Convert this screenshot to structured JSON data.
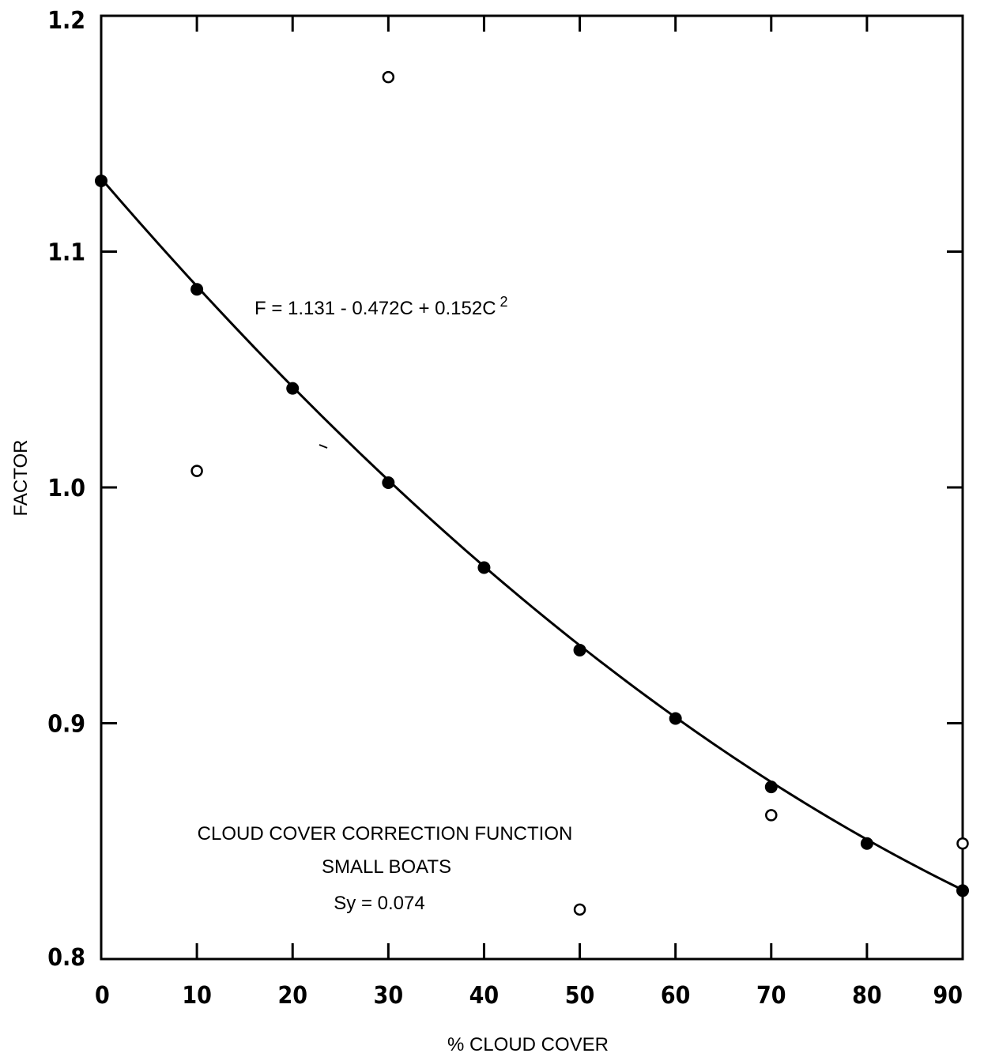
{
  "chart_data": {
    "type": "scatter",
    "title": "",
    "xlabel": "% CLOUD COVER",
    "ylabel": "FACTOR",
    "xlim": [
      0,
      90
    ],
    "ylim": [
      0.8,
      1.2
    ],
    "x_ticks": [
      0,
      10,
      20,
      30,
      40,
      50,
      60,
      70,
      80,
      90
    ],
    "x_tick_labels": [
      "0",
      "10",
      "20",
      "30",
      "40",
      "50",
      "60",
      "70",
      "80",
      "90"
    ],
    "y_ticks": [
      0.8,
      0.9,
      1.0,
      1.1,
      1.2
    ],
    "y_tick_labels": [
      "0.8",
      "0.9",
      "1.0",
      "1.1",
      "1.2"
    ],
    "grid": false,
    "legend": "none",
    "series": [
      {
        "marker": "filled-circle",
        "x": [
          0,
          10,
          20,
          30,
          40,
          50,
          60,
          70,
          80,
          90
        ],
        "y": [
          1.13,
          1.084,
          1.042,
          1.002,
          0.966,
          0.931,
          0.902,
          0.873,
          0.849,
          0.829
        ]
      },
      {
        "marker": "open-circle",
        "x": [
          10,
          30,
          50,
          70,
          90
        ],
        "y": [
          1.007,
          1.174,
          0.821,
          0.861,
          0.849
        ]
      }
    ],
    "fit_curve": {
      "coefficients": [
        1.131,
        -0.472,
        0.152
      ],
      "equation": "F = 1.131 - 0.472C + 0.152C",
      "equation_superscript": "2"
    },
    "annotations": {
      "line1": "CLOUD COVER CORRECTION FUNCTION",
      "line2": "SMALL BOATS",
      "line3": "Sy = 0.074"
    }
  }
}
